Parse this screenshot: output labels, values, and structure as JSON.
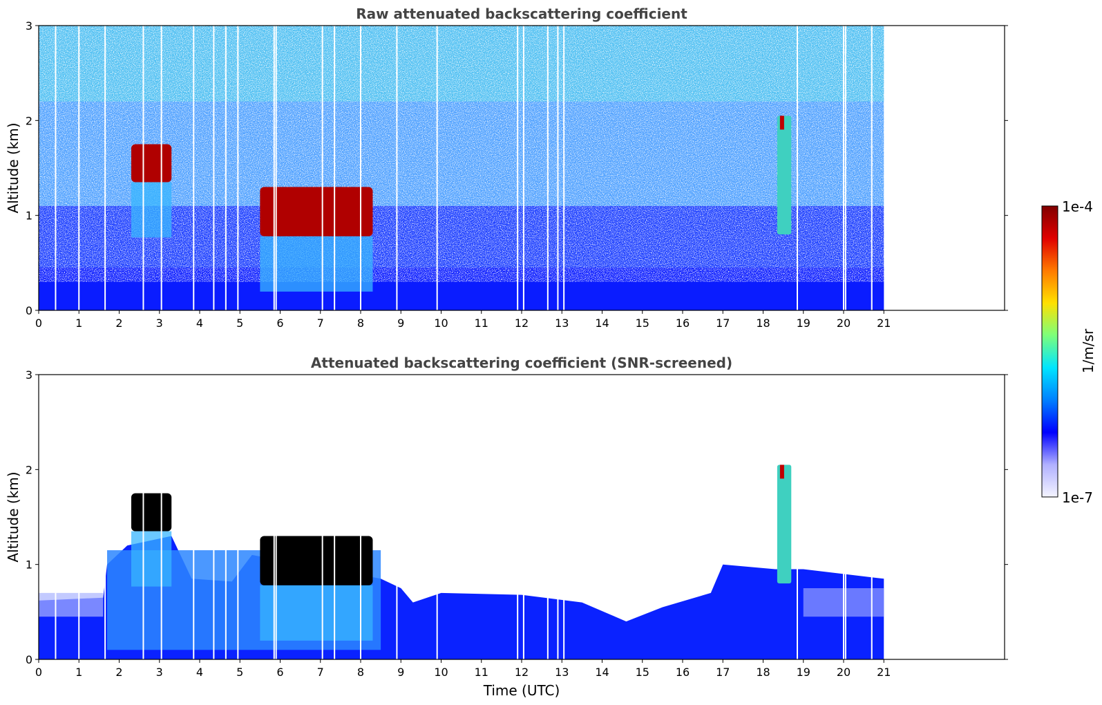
{
  "chart_data": [
    {
      "type": "heatmap",
      "id": "raw",
      "title": "Raw attenuated backscattering coefficient",
      "xlabel": "",
      "ylabel": "Altitude (km)",
      "xlim": [
        0,
        24
      ],
      "ylim": [
        0,
        3
      ],
      "xticks": [
        "0",
        "1",
        "2",
        "3",
        "4",
        "5",
        "6",
        "7",
        "8",
        "9",
        "10",
        "11",
        "12",
        "13",
        "14",
        "15",
        "16",
        "17",
        "18",
        "19",
        "20",
        "21"
      ],
      "yticks": [
        "0",
        "1",
        "2",
        "3"
      ],
      "data_extent_hours": [
        0,
        21
      ],
      "screened": false,
      "features": [
        {
          "name": "cloud",
          "x": [
            2.3,
            3.3
          ],
          "alt": [
            1.35,
            1.75
          ]
        },
        {
          "name": "cloud",
          "x": [
            5.5,
            8.3
          ],
          "alt": [
            0.78,
            1.3
          ]
        },
        {
          "name": "plume",
          "x": [
            18.35,
            18.7
          ],
          "alt": [
            0.8,
            2.05
          ]
        }
      ]
    },
    {
      "type": "heatmap",
      "id": "screened",
      "title": "Attenuated backscattering coefficient (SNR-screened)",
      "xlabel": "Time (UTC)",
      "ylabel": "Altitude (km)",
      "xlim": [
        0,
        24
      ],
      "ylim": [
        0,
        3
      ],
      "xticks": [
        "0",
        "1",
        "2",
        "3",
        "4",
        "5",
        "6",
        "7",
        "8",
        "9",
        "10",
        "11",
        "12",
        "13",
        "14",
        "15",
        "16",
        "17",
        "18",
        "19",
        "20",
        "21"
      ],
      "yticks": [
        "0",
        "1",
        "2",
        "3"
      ],
      "data_extent_hours": [
        0,
        21
      ],
      "screened": true,
      "features": [
        {
          "name": "cloud",
          "x": [
            2.3,
            3.3
          ],
          "alt": [
            1.35,
            1.75
          ]
        },
        {
          "name": "cloud",
          "x": [
            5.5,
            8.3
          ],
          "alt": [
            0.78,
            1.3
          ]
        },
        {
          "name": "plume",
          "x": [
            18.35,
            18.7
          ],
          "alt": [
            0.8,
            2.05
          ]
        }
      ]
    }
  ],
  "colorbar": {
    "label": "1/m/sr",
    "max_label": "1e-4",
    "min_label": "1e-7",
    "colors": [
      "#800000",
      "#e00000",
      "#ff7a00",
      "#ffe000",
      "#7dff7a",
      "#00e5ff",
      "#0080ff",
      "#0000ff",
      "#b0b0ff",
      "#f4f4ff"
    ]
  }
}
